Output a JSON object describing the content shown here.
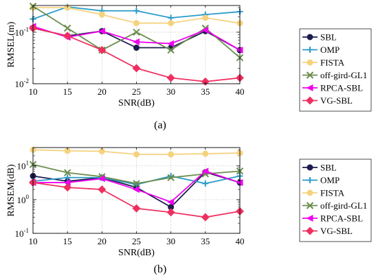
{
  "panels": [
    "(a)",
    "(b)"
  ],
  "marker_styles": {
    "SBL": "circle",
    "OMP": "plus",
    "FISTA": "circle",
    "off-gird-GL1": "x",
    "RPCA-SBL": "triangle-left",
    "VG-SBL": "diamond"
  },
  "chart_data": [
    {
      "type": "line",
      "panel": "(a)",
      "xlabel": "SNR(dB)",
      "ylabel": "RMSEL(m)",
      "yscale": "log",
      "x": [
        10,
        15,
        20,
        25,
        30,
        35,
        40
      ],
      "xticks": [
        "10",
        "15",
        "20",
        "25",
        "30",
        "35",
        "40"
      ],
      "yticks": [
        {
          "value": 0.01,
          "base": "10",
          "exp": "-2"
        },
        {
          "value": 0.1,
          "base": "10",
          "exp": "-1"
        }
      ],
      "xlim": [
        10,
        40
      ],
      "ylim": [
        0.01,
        0.33
      ],
      "grid": true,
      "legend": "right",
      "series": [
        {
          "name": "SBL",
          "color": "#1c1c4e",
          "values": [
            0.12,
            0.085,
            0.105,
            0.05,
            0.05,
            0.105,
            0.045
          ]
        },
        {
          "name": "OMP",
          "color": "#2a9bc8",
          "values": [
            0.18,
            0.31,
            0.26,
            0.26,
            0.19,
            0.22,
            0.25
          ]
        },
        {
          "name": "FISTA",
          "color": "#f5d27e",
          "values": [
            0.3,
            0.3,
            0.22,
            0.15,
            0.15,
            0.19,
            0.15
          ]
        },
        {
          "name": "off-gird-GL1",
          "color": "#6b8e4e",
          "values": [
            0.32,
            0.12,
            0.045,
            0.1,
            0.045,
            0.12,
            0.032
          ]
        },
        {
          "name": "RPCA-SBL",
          "color": "#ee00ee",
          "values": [
            0.13,
            0.08,
            0.105,
            0.065,
            0.06,
            0.11,
            0.045
          ]
        },
        {
          "name": "VG-SBL",
          "color": "#ee3060",
          "values": [
            0.12,
            0.085,
            0.045,
            0.02,
            0.013,
            0.011,
            0.013
          ]
        }
      ]
    },
    {
      "type": "line",
      "panel": "(b)",
      "xlabel": "SNR(dB)",
      "ylabel": "RMSEM(dB)",
      "yscale": "log",
      "x": [
        10,
        15,
        20,
        25,
        30,
        35,
        40
      ],
      "xticks": [
        "10",
        "15",
        "20",
        "25",
        "30",
        "35",
        "40"
      ],
      "yticks": [
        {
          "value": 0.1,
          "base": "10",
          "exp": "-1"
        },
        {
          "value": 1,
          "base": "10",
          "exp": "0"
        },
        {
          "value": 10,
          "base": "10",
          "exp": "1"
        }
      ],
      "xlim": [
        10,
        40
      ],
      "ylim": [
        0.1,
        35
      ],
      "grid": true,
      "legend": "right",
      "series": [
        {
          "name": "SBL",
          "color": "#1c1c4e",
          "values": [
            5.0,
            3.5,
            4.5,
            2.3,
            0.6,
            6.5,
            3.2
          ]
        },
        {
          "name": "OMP",
          "color": "#2a9bc8",
          "values": [
            3.5,
            4.5,
            4.5,
            2.8,
            5.0,
            3.0,
            5.0
          ]
        },
        {
          "name": "FISTA",
          "color": "#f5d27e",
          "values": [
            30,
            28,
            27,
            22,
            22,
            23,
            24
          ]
        },
        {
          "name": "off-gird-GL1",
          "color": "#6b8e4e",
          "values": [
            11,
            6.3,
            4.8,
            3.0,
            4.5,
            5.8,
            7.0
          ]
        },
        {
          "name": "RPCA-SBL",
          "color": "#ee00ee",
          "values": [
            3.2,
            3.2,
            4.2,
            2.0,
            0.85,
            7.0,
            3.2
          ]
        },
        {
          "name": "VG-SBL",
          "color": "#ee3060",
          "values": [
            3.2,
            2.3,
            2.0,
            0.55,
            0.42,
            0.3,
            0.45
          ]
        }
      ]
    }
  ]
}
